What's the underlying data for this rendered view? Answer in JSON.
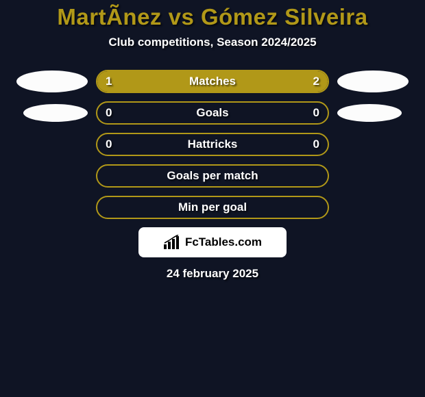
{
  "background_color": "#0f1424",
  "accent_color": "#b19818",
  "text_color": "#ffffff",
  "brand_box_bg": "#ffffff",
  "brand_text_color": "#000000",
  "title": {
    "text": "MartÃ­nez vs Gómez Silveira",
    "color": "#b19818",
    "fontsize": 33
  },
  "subtitle": {
    "text": "Club competitions, Season 2024/2025",
    "color": "#ffffff",
    "fontsize": 17
  },
  "rows": [
    {
      "label": "Matches",
      "left_value": "1",
      "right_value": "2",
      "left_fill_pct": 33.3,
      "right_fill_pct": 66.7,
      "left_fill_color": "#b19818",
      "right_fill_color": "#b19818",
      "show_left_badge": true,
      "show_right_badge": true,
      "badge_size": "normal"
    },
    {
      "label": "Goals",
      "left_value": "0",
      "right_value": "0",
      "left_fill_pct": 0,
      "right_fill_pct": 0,
      "left_fill_color": "#b19818",
      "right_fill_color": "#b19818",
      "show_left_badge": true,
      "show_right_badge": true,
      "badge_size": "small"
    },
    {
      "label": "Hattricks",
      "left_value": "0",
      "right_value": "0",
      "left_fill_pct": 0,
      "right_fill_pct": 0,
      "left_fill_color": "#b19818",
      "right_fill_color": "#b19818",
      "show_left_badge": false,
      "show_right_badge": false
    },
    {
      "label": "Goals per match",
      "left_value": "",
      "right_value": "",
      "left_fill_pct": 0,
      "right_fill_pct": 0,
      "left_fill_color": "#b19818",
      "right_fill_color": "#b19818",
      "show_left_badge": false,
      "show_right_badge": false
    },
    {
      "label": "Min per goal",
      "left_value": "",
      "right_value": "",
      "left_fill_pct": 0,
      "right_fill_pct": 0,
      "left_fill_color": "#b19818",
      "right_fill_color": "#b19818",
      "show_left_badge": false,
      "show_right_badge": false
    }
  ],
  "brand": {
    "text": "FcTables.com"
  },
  "date_text": "24 february 2025"
}
